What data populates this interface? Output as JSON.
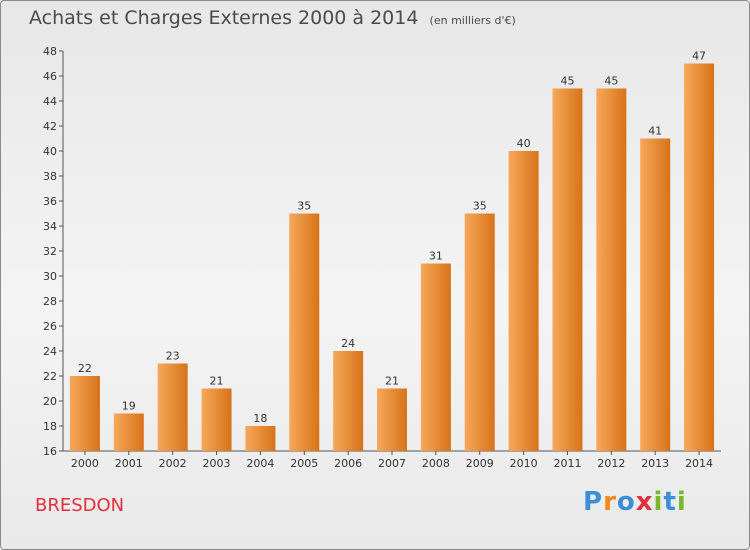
{
  "title": "Achats et Charges Externes 2000 à 2014",
  "unit_note": "(en milliers d'€)",
  "place_name": "BRESDON",
  "brand": {
    "letters": [
      "P",
      "r",
      "o",
      "x",
      "i",
      "t",
      "i"
    ],
    "colors": [
      "#3a8fd6",
      "#f08a1c",
      "#3a8fd6",
      "#e0303a",
      "#79b829",
      "#3a8fd6",
      "#79b829"
    ]
  },
  "colors": {
    "bar_light": "#f6a85b",
    "bar_dark": "#d77318",
    "place_text": "#e0303a"
  },
  "chart_data": {
    "type": "bar",
    "categories": [
      "2000",
      "2001",
      "2002",
      "2003",
      "2004",
      "2005",
      "2006",
      "2007",
      "2008",
      "2009",
      "2010",
      "2011",
      "2012",
      "2013",
      "2014"
    ],
    "values": [
      22,
      19,
      23,
      21,
      18,
      35,
      24,
      21,
      31,
      35,
      40,
      45,
      45,
      41,
      47
    ],
    "ylim": [
      16,
      48
    ],
    "yticks": [
      16,
      18,
      20,
      22,
      24,
      26,
      28,
      30,
      32,
      34,
      36,
      38,
      40,
      42,
      44,
      46,
      48
    ],
    "grid": false,
    "data_labels": true
  }
}
